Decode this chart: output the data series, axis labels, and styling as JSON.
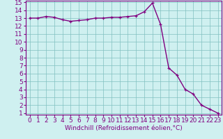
{
  "x": [
    0,
    1,
    2,
    3,
    4,
    5,
    6,
    7,
    8,
    9,
    10,
    11,
    12,
    13,
    14,
    15,
    16,
    17,
    18,
    19,
    20,
    21,
    22,
    23
  ],
  "y": [
    13.0,
    13.0,
    13.2,
    13.1,
    12.8,
    12.6,
    12.7,
    12.8,
    13.0,
    13.0,
    13.1,
    13.1,
    13.2,
    13.3,
    13.8,
    14.9,
    12.2,
    6.7,
    5.8,
    4.0,
    3.4,
    2.0,
    1.5,
    1.0
  ],
  "line_color": "#800080",
  "marker": "+",
  "bg_color": "#cff0f0",
  "grid_color": "#80c0c0",
  "xlabel": "Windchill (Refroidissement éolien,°C)",
  "ylim": [
    1,
    15
  ],
  "xlim": [
    -0.5,
    23.5
  ],
  "yticks": [
    1,
    2,
    3,
    4,
    5,
    6,
    7,
    8,
    9,
    10,
    11,
    12,
    13,
    14,
    15
  ],
  "xticks": [
    0,
    1,
    2,
    3,
    4,
    5,
    6,
    7,
    8,
    9,
    10,
    11,
    12,
    13,
    14,
    15,
    16,
    17,
    18,
    19,
    20,
    21,
    22,
    23
  ],
  "tick_color": "#800080",
  "label_color": "#800080",
  "font_size": 6.5,
  "xlabel_fontsize": 6.5,
  "line_width": 1.0,
  "marker_size": 3.5
}
